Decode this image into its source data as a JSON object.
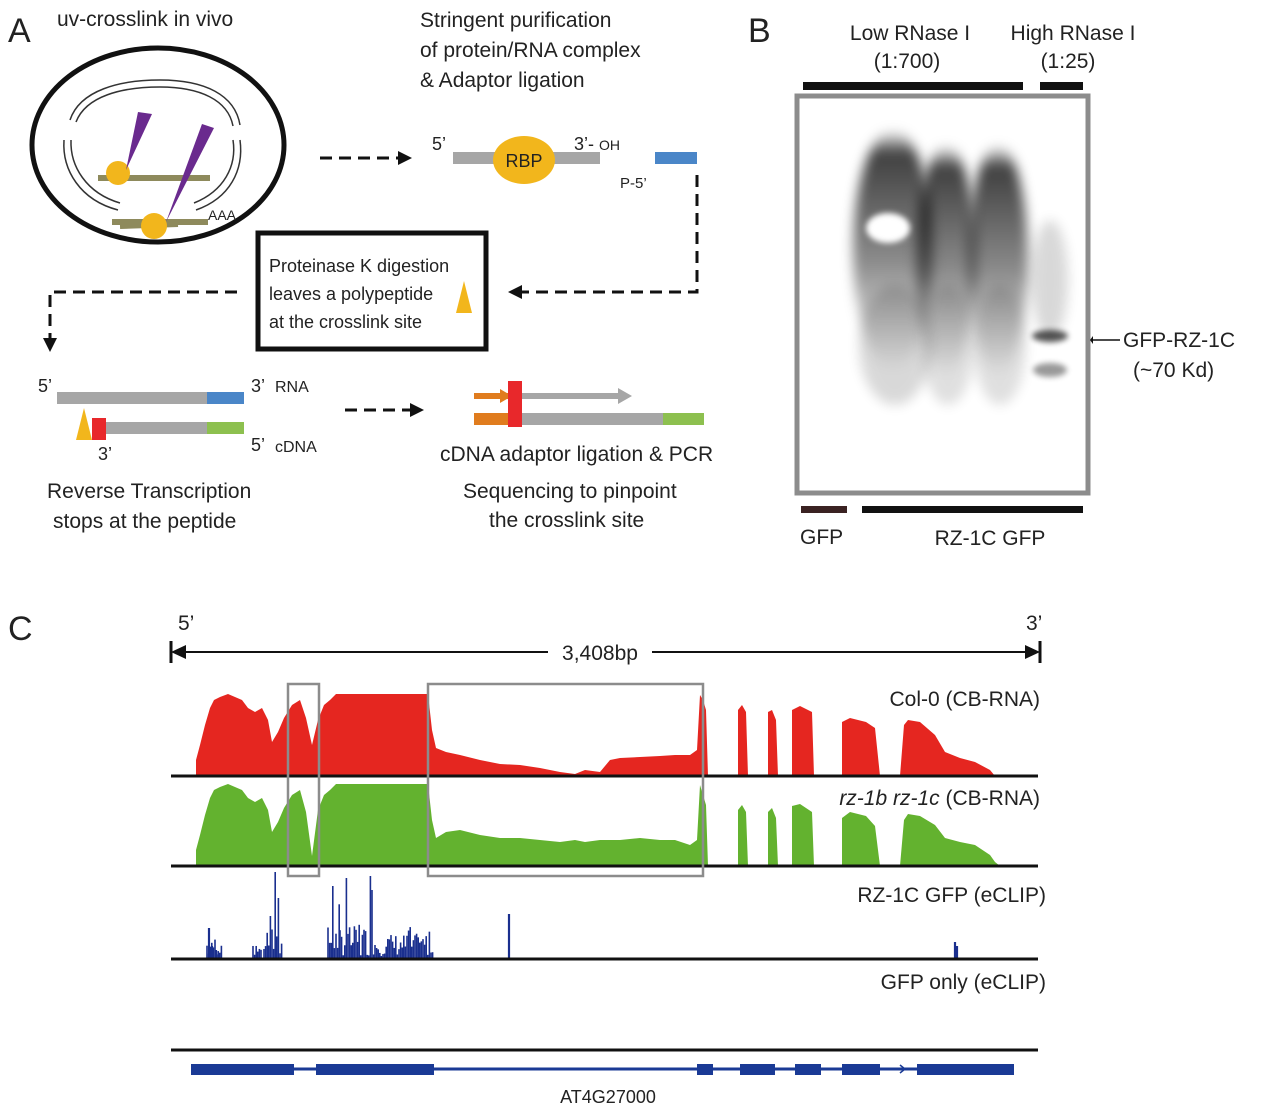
{
  "panels": {
    "A": {
      "letter": "A",
      "step1": "uv-crosslink in vivo",
      "step2": [
        "Stringent purification",
        "of protein/RNA complex",
        "& Adaptor ligation"
      ],
      "rbp": {
        "label": "RBP",
        "five_prime": "5’",
        "three_prime": "3’-",
        "oh": "OH",
        "p5": "P-5’",
        "color": "#f2b61c"
      },
      "polya": "AAA",
      "proteinase": [
        "Proteinase K digestion",
        "leaves a polypeptide",
        "at the crosslink site"
      ],
      "rt_labels": {
        "rna5": "5’",
        "rna3": "3’",
        "rna": "RNA",
        "cdna3": "3’",
        "cdna5": "5’",
        "cdna": "cDNA"
      },
      "rt_caption": [
        "Reverse Transcription",
        "stops at the peptide"
      ],
      "pcr_caption": [
        "cDNA adaptor ligation & PCR",
        "Sequencing to pinpoint",
        "the crosslink site"
      ],
      "colors": {
        "adaptor_blue": "#4a86c8",
        "cdna_green": "#8dc04f",
        "peptide_red": "#e8282b",
        "primer_orange": "#e07c1e",
        "uv_purple": "#6a2a8e",
        "rna_olive": "#8e8a5c",
        "strand_gray": "#a6a6a6"
      }
    },
    "B": {
      "letter": "B",
      "low_label": [
        "Low RNase I",
        "(1:700)"
      ],
      "high_label": [
        "High RNase I",
        "(1:25)"
      ],
      "band_label": [
        "GFP-RZ-1C",
        "(~70 Kd)"
      ],
      "lane_gfp": "GFP",
      "lane_rz": "RZ-1C GFP"
    },
    "C": {
      "letter": "C",
      "five": "5’",
      "three": "3’",
      "length": "3,408bp",
      "tracks": [
        {
          "label": "Col-0 (CB-RNA)",
          "color": "#e52620"
        },
        {
          "label_italic": "rz-1b rz-1c",
          "label_rest": " (CB-RNA)",
          "color": "#63b22f"
        },
        {
          "label": "RZ-1C GFP (eCLIP)",
          "color": "#1a2f8e"
        },
        {
          "label": "GFP only (eCLIP)",
          "color": "#1a2f8e"
        }
      ],
      "gene": {
        "name": "AT4G27000",
        "color": "#1a3a95"
      }
    }
  }
}
